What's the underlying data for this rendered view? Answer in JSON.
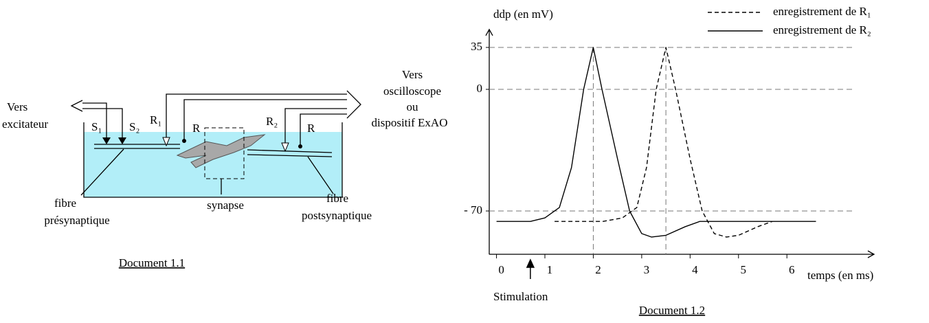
{
  "diagram": {
    "excitateur": [
      "Vers",
      "excitateur"
    ],
    "s1": "S₁",
    "s2": "S₂",
    "r1": "R₁",
    "r2": "R₂",
    "r_a": "R",
    "r_b": "R",
    "oscilloscope": [
      "Vers",
      "oscilloscope",
      "ou",
      "dispositif ExAO"
    ],
    "presynaptic": [
      "fibre",
      "présynaptique"
    ],
    "synapse": "synapse",
    "postsynaptic": [
      "fibre",
      "postsynaptique"
    ],
    "caption": "Document 1.1"
  },
  "chart_data": {
    "type": "line",
    "y_label": "ddp (en mV)",
    "x_label": "temps (en ms)",
    "annotation": {
      "text": "Stimulation",
      "x": 0.7
    },
    "caption": "Document 1.2",
    "xlim": [
      -0.15,
      7.8
    ],
    "xticks": [
      0,
      1,
      2,
      3,
      4,
      5,
      6
    ],
    "ylim": [
      -95,
      50
    ],
    "yticks": [
      35,
      0,
      {
        "value": -70,
        "label": "- 70"
      }
    ],
    "grid": true,
    "legend": "top-right",
    "series": [
      {
        "name": "enregistrement de R₁",
        "color": "#000000",
        "dash": true,
        "x": [
          1.2,
          2.2,
          2.6,
          2.9,
          3.1,
          3.3,
          3.5,
          3.7,
          4.0,
          4.25,
          4.5,
          4.75,
          5.0,
          5.4,
          5.7
        ],
        "values": [
          -76,
          -76,
          -74,
          -68,
          -45,
          0,
          35,
          0,
          -40,
          -70,
          -83,
          -85,
          -84,
          -79,
          -76
        ]
      },
      {
        "name": "enregistrement de R₂",
        "color": "#000000",
        "dash": false,
        "x": [
          0,
          0.7,
          1.0,
          1.3,
          1.55,
          1.8,
          2.0,
          2.18,
          2.5,
          2.75,
          3.0,
          3.2,
          3.5,
          3.9,
          4.2,
          5.0,
          6.6
        ],
        "values": [
          -76,
          -76,
          -74,
          -68,
          -45,
          0,
          35,
          0,
          -40,
          -70,
          -83,
          -85,
          -84,
          -79,
          -76,
          -76,
          -76
        ]
      }
    ]
  }
}
